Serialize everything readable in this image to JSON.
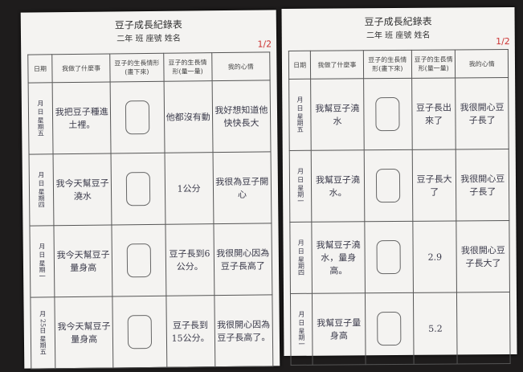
{
  "pages": [
    {
      "title": "豆子成長紀錄表",
      "subtitle": "二年 班 座號 姓名",
      "score": "1/2",
      "headers": [
        "日期",
        "我做了什麼事",
        "豆子的生長情形(畫下來)",
        "豆子的生長情形(量一量)",
        "我的心情"
      ],
      "rows": [
        {
          "date": "月 日 星期五",
          "activity": "我把豆子種進土裡。",
          "measure": "他都沒有動",
          "mood": "我好想知道他快快長大"
        },
        {
          "date": "月 日 星期四",
          "activity": "我今天幫豆子澆水",
          "measure": "1公分",
          "mood": "我很為豆子開心"
        },
        {
          "date": "月 日 星期一",
          "activity": "我今天幫豆子量身高",
          "measure": "豆子長到6公分。",
          "mood": "我很開心因為豆子長高了"
        },
        {
          "date": "月 25日 星期五",
          "activity": "我今天幫豆子量身高",
          "measure": "豆子長到15公分。",
          "mood": "我很開心因為豆子長高了。"
        }
      ]
    },
    {
      "title": "豆子成長紀錄表",
      "subtitle": "二年 班 座號 姓名",
      "score": "1/2",
      "headers": [
        "日期",
        "我做了什麼事",
        "豆子的生長情形(畫下來)",
        "豆子的生長情形(量一量)",
        "我的心情"
      ],
      "rows": [
        {
          "date": "月 日 星期五",
          "activity": "我幫豆子澆水",
          "measure": "豆子長出來了",
          "mood": "我很開心豆子長了"
        },
        {
          "date": "月 日 星期一",
          "activity": "我幫豆子澆水。",
          "measure": "豆子長大了",
          "mood": "我很開心豆子長了"
        },
        {
          "date": "月 日 星期四",
          "activity": "我幫豆子澆水，量身高。",
          "measure": "2.9",
          "mood": "我很開心豆子長大了"
        },
        {
          "date": "月 日 星期一",
          "activity": "我幫豆子量身高",
          "measure": "5.2"
        }
      ]
    }
  ]
}
